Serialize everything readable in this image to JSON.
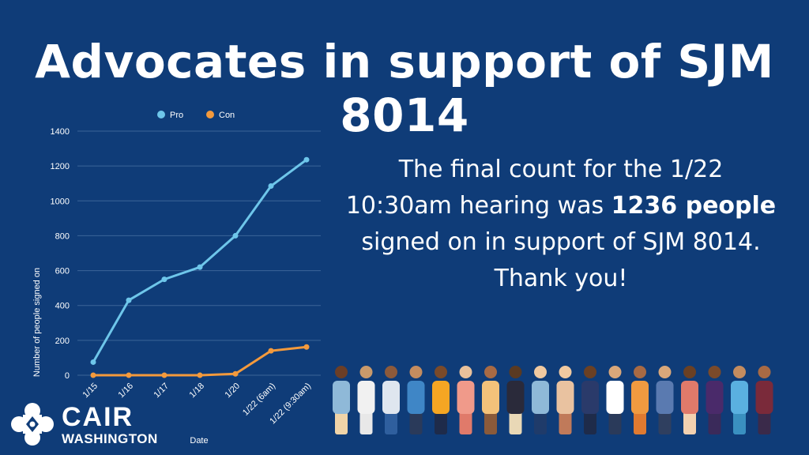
{
  "title": "Advocates in support of SJM 8014",
  "message": {
    "line1": "The final count for the 1/22",
    "line2_pre": "10:30am hearing was ",
    "line2_bold": "1236 people",
    "line3": "signed on in support of SJM 8014.",
    "line4": "Thank you!"
  },
  "logo": {
    "name": "CAIR",
    "sub": "WASHINGTON"
  },
  "colors": {
    "background": "#0f3c78",
    "pro": "#6ec6ea",
    "con": "#f49a3c",
    "grid": "#3b6498"
  },
  "chart_data": {
    "type": "line",
    "categories": [
      "1/15",
      "1/16",
      "1/17",
      "1/18",
      "1/20",
      "1/22 (6am)",
      "1/22 (9:30am)"
    ],
    "series": [
      {
        "name": "Pro",
        "values": [
          75,
          430,
          550,
          620,
          800,
          1085,
          1236
        ]
      },
      {
        "name": "Con",
        "values": [
          0,
          0,
          0,
          0,
          8,
          140,
          162
        ]
      }
    ],
    "xlabel": "Date",
    "ylabel": "Number of people signed on",
    "ylim": [
      0,
      1400
    ],
    "yticks": [
      0,
      200,
      400,
      600,
      800,
      1000,
      1200,
      1400
    ],
    "grid": true,
    "legend": "top"
  }
}
